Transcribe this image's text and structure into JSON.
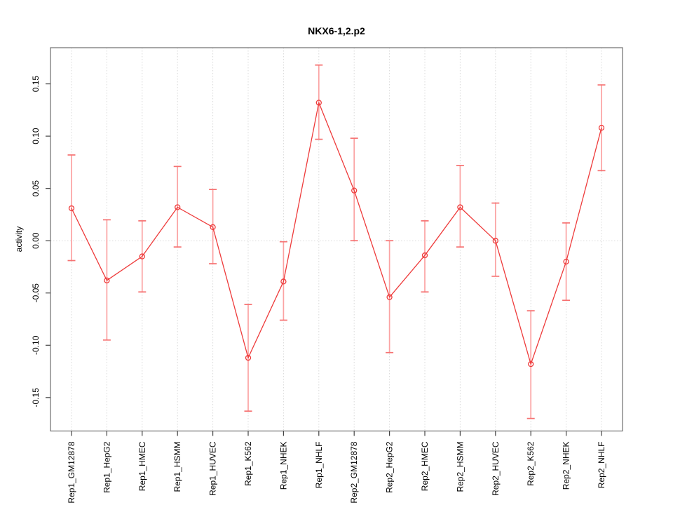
{
  "window": {
    "background": "#ffffff"
  },
  "colors": {
    "series_line": "#ee3b3b",
    "point_stroke": "#ee3b3b",
    "errorbar_stem": "#fba3a3",
    "errorbar_cap": "#f67272",
    "gridline": "#d9d9d9",
    "zero_line": "#d9d9d9",
    "frame": "#6e6e6e",
    "tick": "#444444",
    "text": "#000000"
  },
  "chart_data": {
    "type": "line",
    "title": "NKX6-1,2.p2",
    "xlabel": "",
    "ylabel": "activity",
    "ylim": [
      -0.182,
      0.1846
    ],
    "grid": "vertical dotted gridline at each category; horizontal dotted line at y=0; legend none",
    "yticks": [
      {
        "value": -0.15,
        "label": "-0.15"
      },
      {
        "value": -0.1,
        "label": "-0.10"
      },
      {
        "value": -0.05,
        "label": "-0.05"
      },
      {
        "value": 0.0,
        "label": "0.00"
      },
      {
        "value": 0.05,
        "label": "0.05"
      },
      {
        "value": 0.1,
        "label": "0.10"
      },
      {
        "value": 0.15,
        "label": "0.15"
      }
    ],
    "categories": [
      "Rep1_GM12878",
      "Rep1_HepG2",
      "Rep1_HMEC",
      "Rep1_HSMM",
      "Rep1_HUVEC",
      "Rep1_K562",
      "Rep1_NHEK",
      "Rep1_NHLF",
      "Rep2_GM12878",
      "Rep2_HepG2",
      "Rep2_HMEC",
      "Rep2_HSMM",
      "Rep2_HUVEC",
      "Rep2_K562",
      "Rep2_NHEK",
      "Rep2_NHLF"
    ],
    "series": [
      {
        "name": "activity",
        "marker": "open-circle",
        "values": [
          0.031,
          -0.038,
          -0.015,
          0.032,
          0.013,
          -0.112,
          -0.039,
          0.132,
          0.048,
          -0.054,
          -0.014,
          0.032,
          0.0,
          -0.118,
          -0.02,
          0.108
        ],
        "ci_low": [
          -0.019,
          -0.095,
          -0.049,
          -0.006,
          -0.022,
          -0.163,
          -0.076,
          0.097,
          0.0,
          -0.107,
          -0.049,
          -0.006,
          -0.034,
          -0.17,
          -0.057,
          0.067
        ],
        "ci_high": [
          0.082,
          0.02,
          0.019,
          0.071,
          0.049,
          -0.061,
          -0.001,
          0.168,
          0.098,
          0.0,
          0.019,
          0.072,
          0.036,
          -0.067,
          0.017,
          0.149
        ]
      }
    ]
  }
}
